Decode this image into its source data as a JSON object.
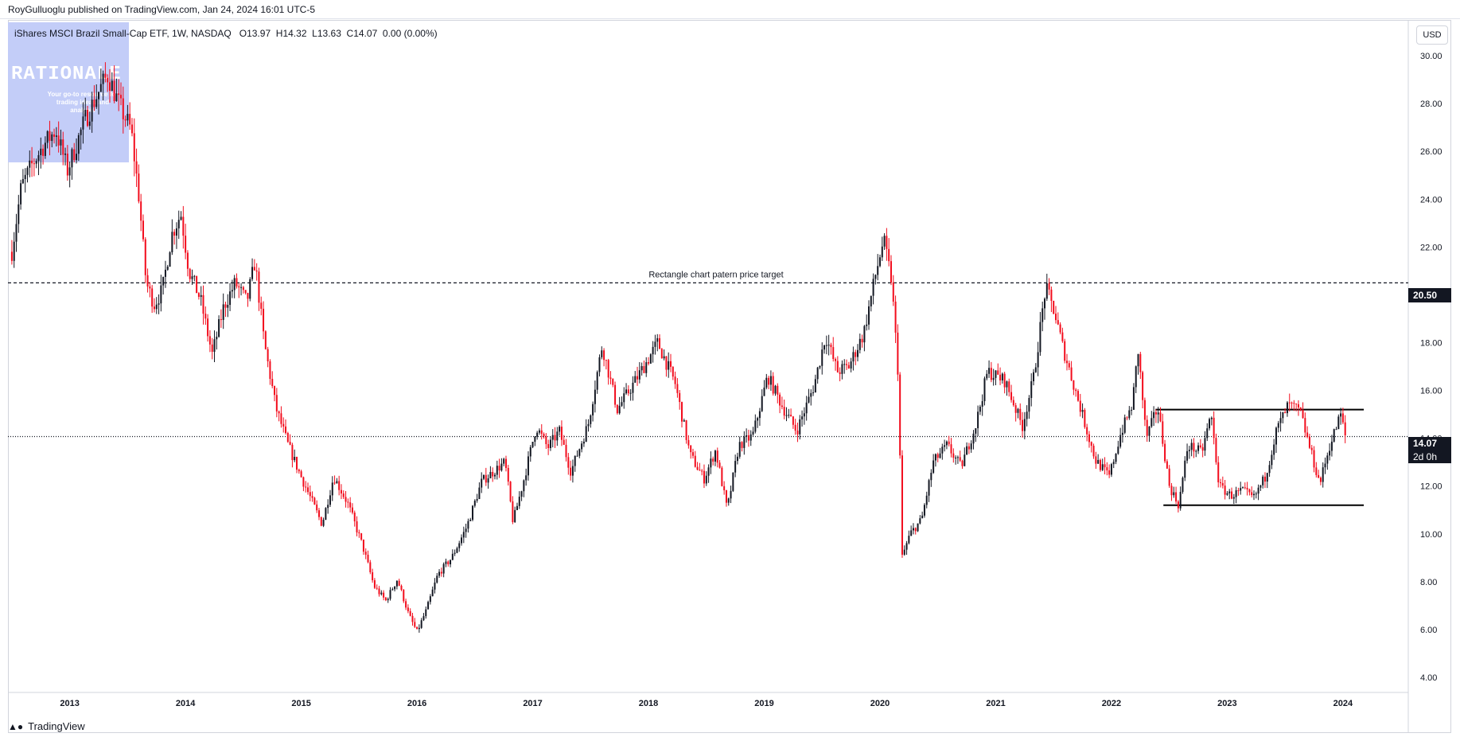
{
  "header": {
    "published": "RoyGulluoglu published on TradingView.com, Jan 24, 2024 16:01 UTC-5"
  },
  "legend": {
    "symbol": "iShares MSCI Brazil Small-Cap ETF, 1W, NASDAQ",
    "open": "O13.97",
    "high": "H14.32",
    "low": "L13.63",
    "close": "C14.07",
    "change": "0.00 (0.00%)"
  },
  "currency": "USD",
  "watermark": {
    "title": "RATIONALE",
    "subtitle": "Your go-to resource for trading ideas and analysis"
  },
  "footer": {
    "brand": "TradingView"
  },
  "colors": {
    "up": "#131722",
    "down": "#f20c1c",
    "grid": "#ffffff",
    "axis_text": "#131722"
  },
  "price_labels": {
    "target": "20.50",
    "last": "14.07",
    "countdown": "2d 0h"
  },
  "chart_data": {
    "type": "candlestick",
    "title": "iShares MSCI Brazil Small-Cap ETF, 1W, NASDAQ",
    "timeframe": "1W",
    "x_ticks": [
      "2013",
      "2014",
      "2015",
      "2016",
      "2017",
      "2018",
      "2019",
      "2020",
      "2021",
      "2022",
      "2023",
      "2024"
    ],
    "y_ticks": [
      "30.00",
      "28.00",
      "26.00",
      "24.00",
      "22.00",
      "20.00",
      "18.00",
      "16.00",
      "14.00",
      "12.00",
      "10.00",
      "8.00",
      "6.00",
      "4.00"
    ],
    "ylim": [
      3.5,
      31
    ],
    "xlim": [
      2012.5,
      2024.55
    ],
    "price_path": [
      [
        2012.52,
        21.8
      ],
      [
        2012.6,
        24.5
      ],
      [
        2012.7,
        25.5
      ],
      [
        2012.8,
        26.3
      ],
      [
        2012.9,
        26.9
      ],
      [
        2013.0,
        25.2
      ],
      [
        2013.15,
        27.3
      ],
      [
        2013.28,
        28.6
      ],
      [
        2013.35,
        29.2
      ],
      [
        2013.45,
        27.9
      ],
      [
        2013.55,
        26.9
      ],
      [
        2013.62,
        24.0
      ],
      [
        2013.68,
        20.5
      ],
      [
        2013.75,
        19.6
      ],
      [
        2013.82,
        20.2
      ],
      [
        2013.9,
        22.5
      ],
      [
        2013.98,
        23.4
      ],
      [
        2014.05,
        21.0
      ],
      [
        2014.15,
        19.8
      ],
      [
        2014.25,
        17.5
      ],
      [
        2014.35,
        19.5
      ],
      [
        2014.45,
        20.5
      ],
      [
        2014.55,
        19.7
      ],
      [
        2014.62,
        21.4
      ],
      [
        2014.7,
        18.0
      ],
      [
        2014.8,
        15.3
      ],
      [
        2014.9,
        13.8
      ],
      [
        2015.0,
        12.6
      ],
      [
        2015.1,
        11.5
      ],
      [
        2015.2,
        10.4
      ],
      [
        2015.3,
        12.4
      ],
      [
        2015.42,
        11.3
      ],
      [
        2015.55,
        9.5
      ],
      [
        2015.65,
        7.8
      ],
      [
        2015.75,
        7.2
      ],
      [
        2015.85,
        8.1
      ],
      [
        2015.95,
        6.6
      ],
      [
        2016.02,
        5.9
      ],
      [
        2016.1,
        6.8
      ],
      [
        2016.2,
        8.3
      ],
      [
        2016.32,
        9.0
      ],
      [
        2016.45,
        10.3
      ],
      [
        2016.58,
        12.2
      ],
      [
        2016.68,
        12.6
      ],
      [
        2016.78,
        13.0
      ],
      [
        2016.85,
        10.5
      ],
      [
        2016.95,
        12.4
      ],
      [
        2017.05,
        14.5
      ],
      [
        2017.15,
        13.6
      ],
      [
        2017.25,
        14.3
      ],
      [
        2017.35,
        12.6
      ],
      [
        2017.5,
        14.6
      ],
      [
        2017.62,
        17.9
      ],
      [
        2017.75,
        15.2
      ],
      [
        2017.88,
        16.2
      ],
      [
        2017.98,
        17.0
      ],
      [
        2018.1,
        18.0
      ],
      [
        2018.25,
        16.3
      ],
      [
        2018.38,
        13.3
      ],
      [
        2018.5,
        12.3
      ],
      [
        2018.6,
        13.5
      ],
      [
        2018.7,
        11.0
      ],
      [
        2018.8,
        13.7
      ],
      [
        2018.92,
        14.1
      ],
      [
        2019.05,
        16.6
      ],
      [
        2019.18,
        15.3
      ],
      [
        2019.3,
        14.3
      ],
      [
        2019.45,
        16.2
      ],
      [
        2019.55,
        18.3
      ],
      [
        2019.65,
        16.8
      ],
      [
        2019.75,
        17.0
      ],
      [
        2019.88,
        18.4
      ],
      [
        2019.98,
        20.8
      ],
      [
        2020.05,
        22.3
      ],
      [
        2020.12,
        20.6
      ],
      [
        2020.18,
        16.5
      ],
      [
        2020.21,
        9.0
      ],
      [
        2020.28,
        10.0
      ],
      [
        2020.38,
        10.6
      ],
      [
        2020.48,
        13.0
      ],
      [
        2020.6,
        13.7
      ],
      [
        2020.72,
        12.8
      ],
      [
        2020.85,
        14.6
      ],
      [
        2020.95,
        16.8
      ],
      [
        2021.1,
        16.4
      ],
      [
        2021.25,
        14.5
      ],
      [
        2021.35,
        16.6
      ],
      [
        2021.45,
        20.3
      ],
      [
        2021.52,
        19.4
      ],
      [
        2021.6,
        17.8
      ],
      [
        2021.75,
        15.3
      ],
      [
        2021.88,
        13.1
      ],
      [
        2022.0,
        12.4
      ],
      [
        2022.1,
        14.2
      ],
      [
        2022.2,
        15.4
      ],
      [
        2022.25,
        17.7
      ],
      [
        2022.32,
        14.0
      ],
      [
        2022.42,
        15.3
      ],
      [
        2022.52,
        12.0
      ],
      [
        2022.6,
        11.2
      ],
      [
        2022.68,
        13.7
      ],
      [
        2022.8,
        13.4
      ],
      [
        2022.88,
        15.0
      ],
      [
        2022.95,
        12.0
      ],
      [
        2023.05,
        11.6
      ],
      [
        2023.15,
        11.8
      ],
      [
        2023.25,
        11.5
      ],
      [
        2023.35,
        12.4
      ],
      [
        2023.45,
        14.4
      ],
      [
        2023.55,
        15.4
      ],
      [
        2023.65,
        15.1
      ],
      [
        2023.75,
        13.3
      ],
      [
        2023.82,
        12.1
      ],
      [
        2023.9,
        13.6
      ],
      [
        2024.0,
        15.0
      ],
      [
        2024.04,
        14.07
      ]
    ],
    "horizontal_lines": [
      {
        "price": 20.5,
        "style": "dashed",
        "label": "Rectangle chart patern price target"
      },
      {
        "price": 14.07,
        "style": "dotted",
        "label": ""
      }
    ],
    "rectangle": {
      "top": 15.2,
      "bottom": 11.2,
      "from": 2022.4,
      "to": 2024.2
    },
    "grid": false,
    "axis_position": "right"
  }
}
